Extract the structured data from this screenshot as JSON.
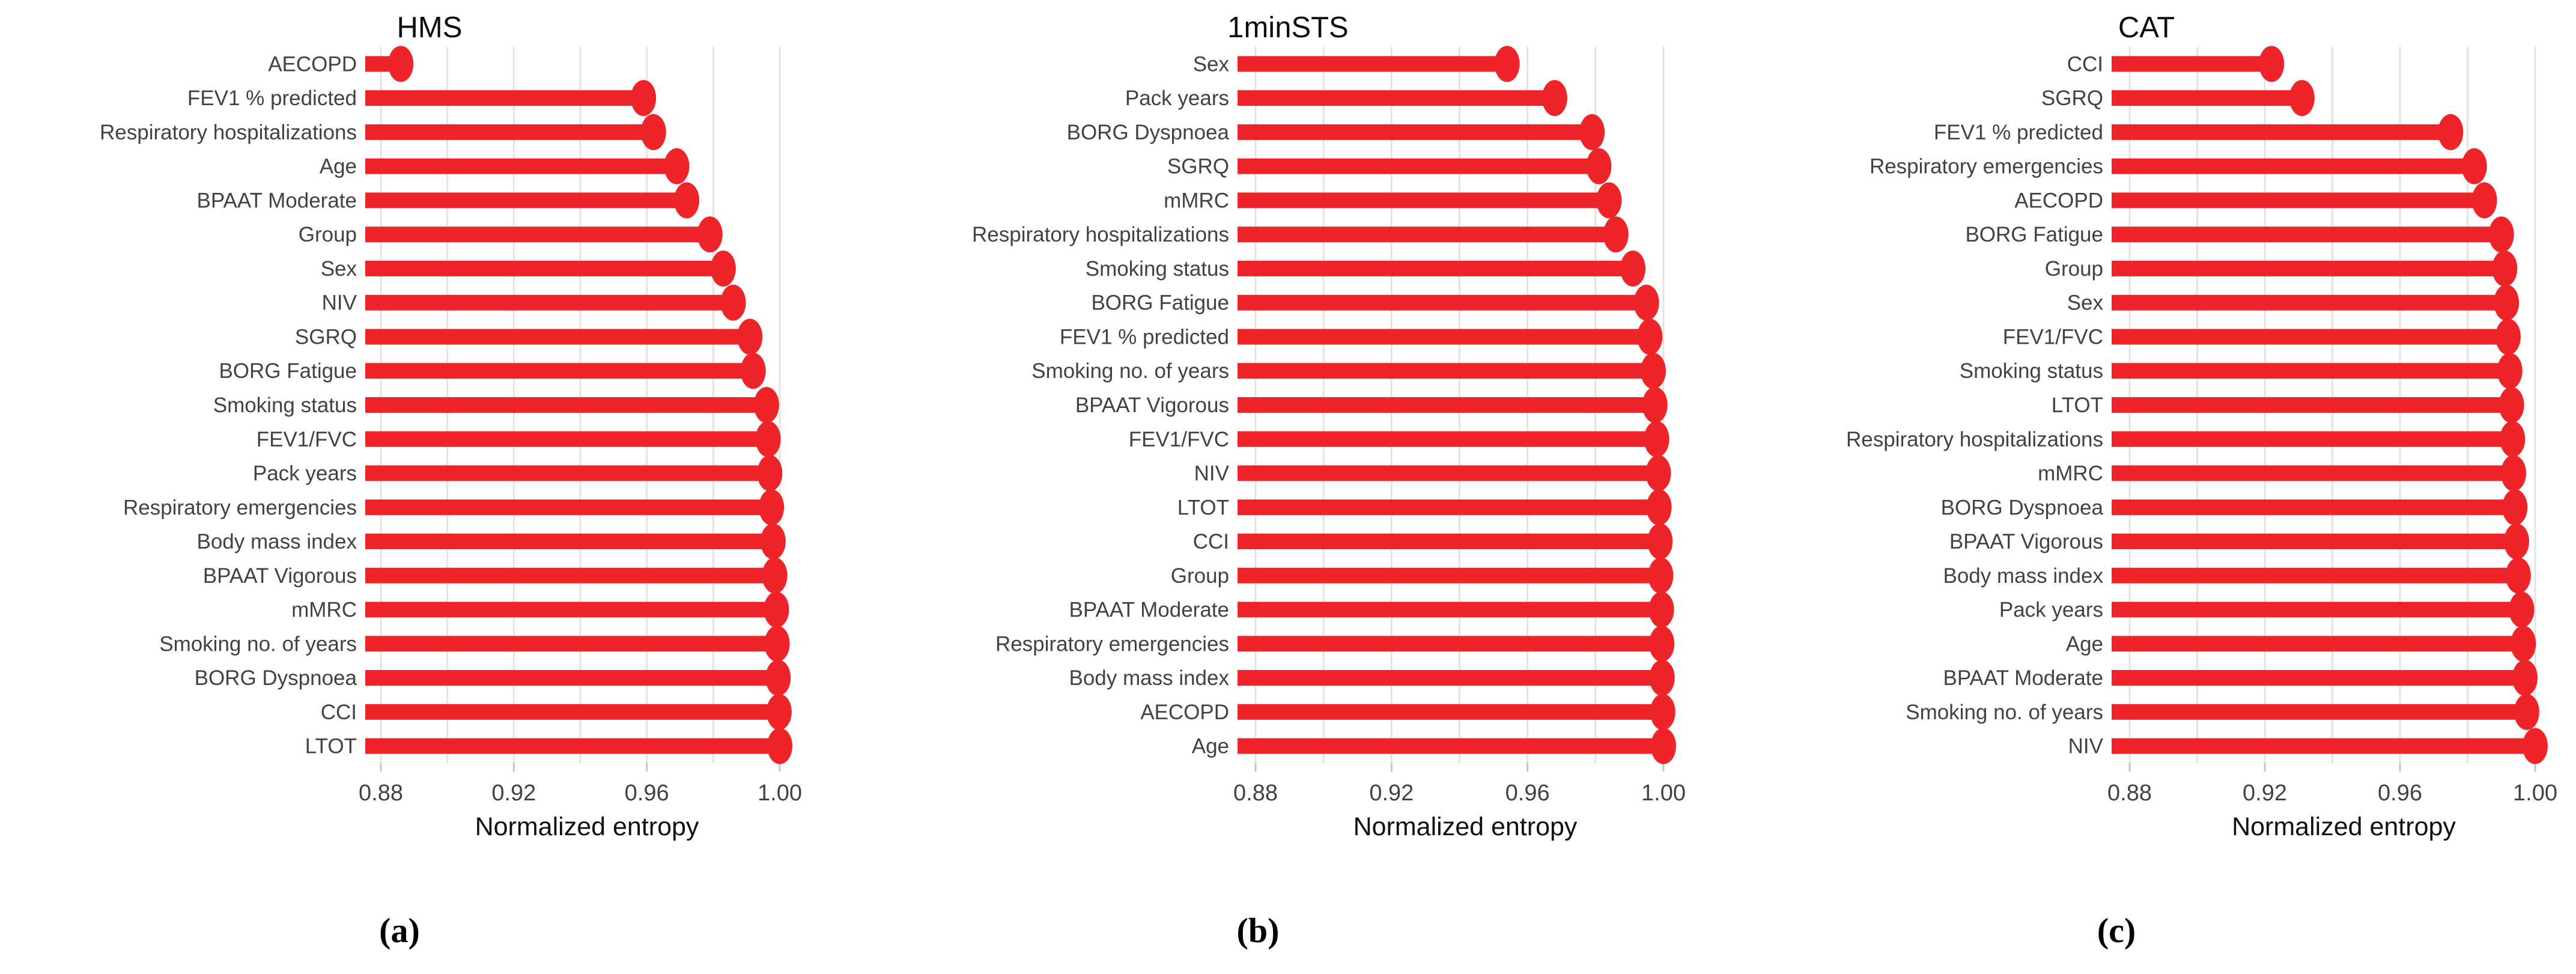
{
  "figure": {
    "background": "#ffffff",
    "accent_red": "#EF2428",
    "grid_color": "#e3e3e3",
    "axis_tick_color": "#c4c4c4",
    "label_color": "#424242",
    "title_color": "#0d0d0d",
    "axis_title_color": "#111111"
  },
  "chart_data": [
    {
      "type": "scatter",
      "variant": "horizontal-lollipop",
      "title": "HMS",
      "panel_letter": "(a)",
      "xlabel": "Normalized entropy",
      "xticks": [
        0.88,
        0.92,
        0.96,
        1.0
      ],
      "xtick_labels": [
        "0.88",
        "0.92",
        "0.96",
        "1.00"
      ],
      "xlim": [
        0.874,
        1.009
      ],
      "grid": "vertical gridlines every 0.02, no horizontal grid",
      "legend": "none",
      "categories": [
        "AECOPD",
        "FEV1 % predicted",
        "Respiratory hospitalizations",
        "Age",
        "BPAAT Moderate",
        "Group",
        "Sex",
        "NIV",
        "SGRQ",
        "BORG Fatigue",
        "Smoking status",
        "FEV1/FVC",
        "Pack years",
        "Respiratory emergencies",
        "Body mass index",
        "BPAAT Vigorous",
        "mMRC",
        "Smoking no. of years",
        "BORG Dyspnoea",
        "CCI",
        "LTOT"
      ],
      "values": [
        0.886,
        0.959,
        0.962,
        0.969,
        0.972,
        0.979,
        0.983,
        0.986,
        0.991,
        0.992,
        0.996,
        0.9965,
        0.997,
        0.9975,
        0.998,
        0.9985,
        0.999,
        0.9992,
        0.9995,
        0.9998,
        1.0
      ]
    },
    {
      "type": "scatter",
      "variant": "horizontal-lollipop",
      "title": "1minSTS",
      "panel_letter": "(b)",
      "xlabel": "Normalized entropy",
      "xticks": [
        0.88,
        0.92,
        0.96,
        1.0
      ],
      "xtick_labels": [
        "0.88",
        "0.92",
        "0.96",
        "1.00"
      ],
      "xlim": [
        0.874,
        1.009
      ],
      "grid": "vertical gridlines every 0.02, no horizontal grid",
      "legend": "none",
      "categories": [
        "Sex",
        "Pack years",
        "BORG Dyspnoea",
        "SGRQ",
        "mMRC",
        "Respiratory hospitalizations",
        "Smoking status",
        "BORG Fatigue",
        "FEV1 % predicted",
        "Smoking no. of years",
        "BPAAT Vigorous",
        "FEV1/FVC",
        "NIV",
        "LTOT",
        "CCI",
        "Group",
        "BPAAT Moderate",
        "Respiratory emergencies",
        "Body mass index",
        "AECOPD",
        "Age"
      ],
      "values": [
        0.954,
        0.968,
        0.979,
        0.981,
        0.984,
        0.986,
        0.991,
        0.995,
        0.996,
        0.997,
        0.9975,
        0.998,
        0.9985,
        0.9987,
        0.999,
        0.9992,
        0.9994,
        0.9995,
        0.9996,
        0.9998,
        1.0
      ]
    },
    {
      "type": "scatter",
      "variant": "horizontal-lollipop",
      "title": "CAT",
      "panel_letter": "(c)",
      "xlabel": "Normalized entropy",
      "xticks": [
        0.88,
        0.92,
        0.96,
        1.0
      ],
      "xtick_labels": [
        "0.88",
        "0.92",
        "0.96",
        "1.00"
      ],
      "xlim": [
        0.874,
        1.009
      ],
      "grid": "vertical gridlines every 0.02, no horizontal grid",
      "legend": "none",
      "categories": [
        "CCI",
        "SGRQ",
        "FEV1 % predicted",
        "Respiratory emergencies",
        "AECOPD",
        "BORG Fatigue",
        "Group",
        "Sex",
        "FEV1/FVC",
        "Smoking status",
        "LTOT",
        "Respiratory hospitalizations",
        "mMRC",
        "BORG Dyspnoea",
        "BPAAT Vigorous",
        "Body mass index",
        "Pack years",
        "Age",
        "BPAAT Moderate",
        "Smoking no. of years",
        "NIV"
      ],
      "values": [
        0.922,
        0.931,
        0.975,
        0.982,
        0.985,
        0.99,
        0.991,
        0.9915,
        0.992,
        0.9925,
        0.993,
        0.9933,
        0.9936,
        0.994,
        0.9945,
        0.995,
        0.996,
        0.9965,
        0.997,
        0.9975,
        1.0
      ]
    }
  ]
}
